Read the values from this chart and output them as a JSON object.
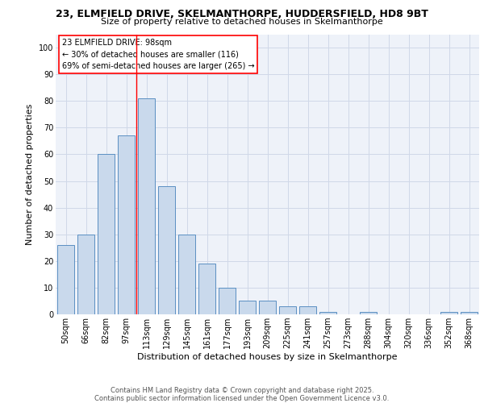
{
  "title1": "23, ELMFIELD DRIVE, SKELMANTHORPE, HUDDERSFIELD, HD8 9BT",
  "title2": "Size of property relative to detached houses in Skelmanthorpe",
  "xlabel": "Distribution of detached houses by size in Skelmanthorpe",
  "ylabel": "Number of detached properties",
  "categories": [
    "50sqm",
    "66sqm",
    "82sqm",
    "97sqm",
    "113sqm",
    "129sqm",
    "145sqm",
    "161sqm",
    "177sqm",
    "193sqm",
    "209sqm",
    "225sqm",
    "241sqm",
    "257sqm",
    "273sqm",
    "288sqm",
    "304sqm",
    "320sqm",
    "336sqm",
    "352sqm",
    "368sqm"
  ],
  "values": [
    26,
    30,
    60,
    67,
    81,
    48,
    30,
    19,
    10,
    5,
    5,
    3,
    3,
    1,
    0,
    1,
    0,
    0,
    0,
    1,
    1
  ],
  "bar_color": "#c9d9ec",
  "bar_edge_color": "#5a8fc2",
  "grid_color": "#d0d8e8",
  "background_color": "#eef2f9",
  "red_line_x": 3.5,
  "annotation_text": "23 ELMFIELD DRIVE: 98sqm\n← 30% of detached houses are smaller (116)\n69% of semi-detached houses are larger (265) →",
  "footer": "Contains HM Land Registry data © Crown copyright and database right 2025.\nContains public sector information licensed under the Open Government Licence v3.0.",
  "yticks": [
    0,
    10,
    20,
    30,
    40,
    50,
    60,
    70,
    80,
    90,
    100
  ],
  "ylim": [
    0,
    105
  ],
  "title1_fontsize": 9,
  "title2_fontsize": 8,
  "axis_label_fontsize": 8,
  "tick_fontsize": 7,
  "footer_fontsize": 6,
  "annotation_fontsize": 7
}
